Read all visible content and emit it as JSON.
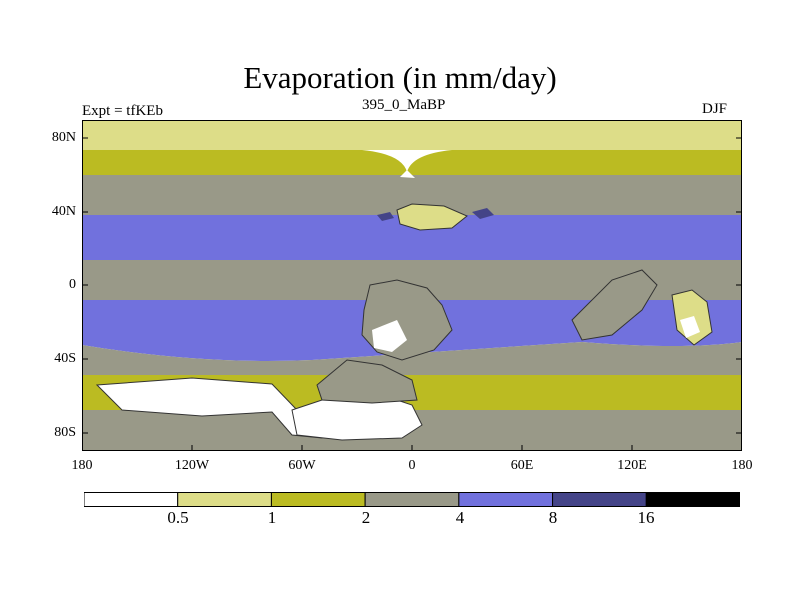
{
  "header": {
    "title": "Evaporation (in mm/day)",
    "left_label": "Expt = tfKEb",
    "center_label": "395_0_MaBP",
    "right_label": "DJF"
  },
  "axes": {
    "y_ticks": [
      "80N",
      "40N",
      "0",
      "40S",
      "80S"
    ],
    "x_ticks": [
      "180",
      "120W",
      "60W",
      "0",
      "60E",
      "120E",
      "180"
    ]
  },
  "colorbar": {
    "labels": [
      "0.5",
      "1",
      "2",
      "4",
      "8",
      "16"
    ],
    "colors": [
      "#ffffff",
      "#dddd88",
      "#bbbb22",
      "#999988",
      "#7171dd",
      "#444488",
      "#000000"
    ]
  },
  "map": {
    "projection": "cylindrical equidistant",
    "lon_range": [
      -180,
      180
    ],
    "lat_range": [
      -90,
      90
    ],
    "grid": false
  }
}
